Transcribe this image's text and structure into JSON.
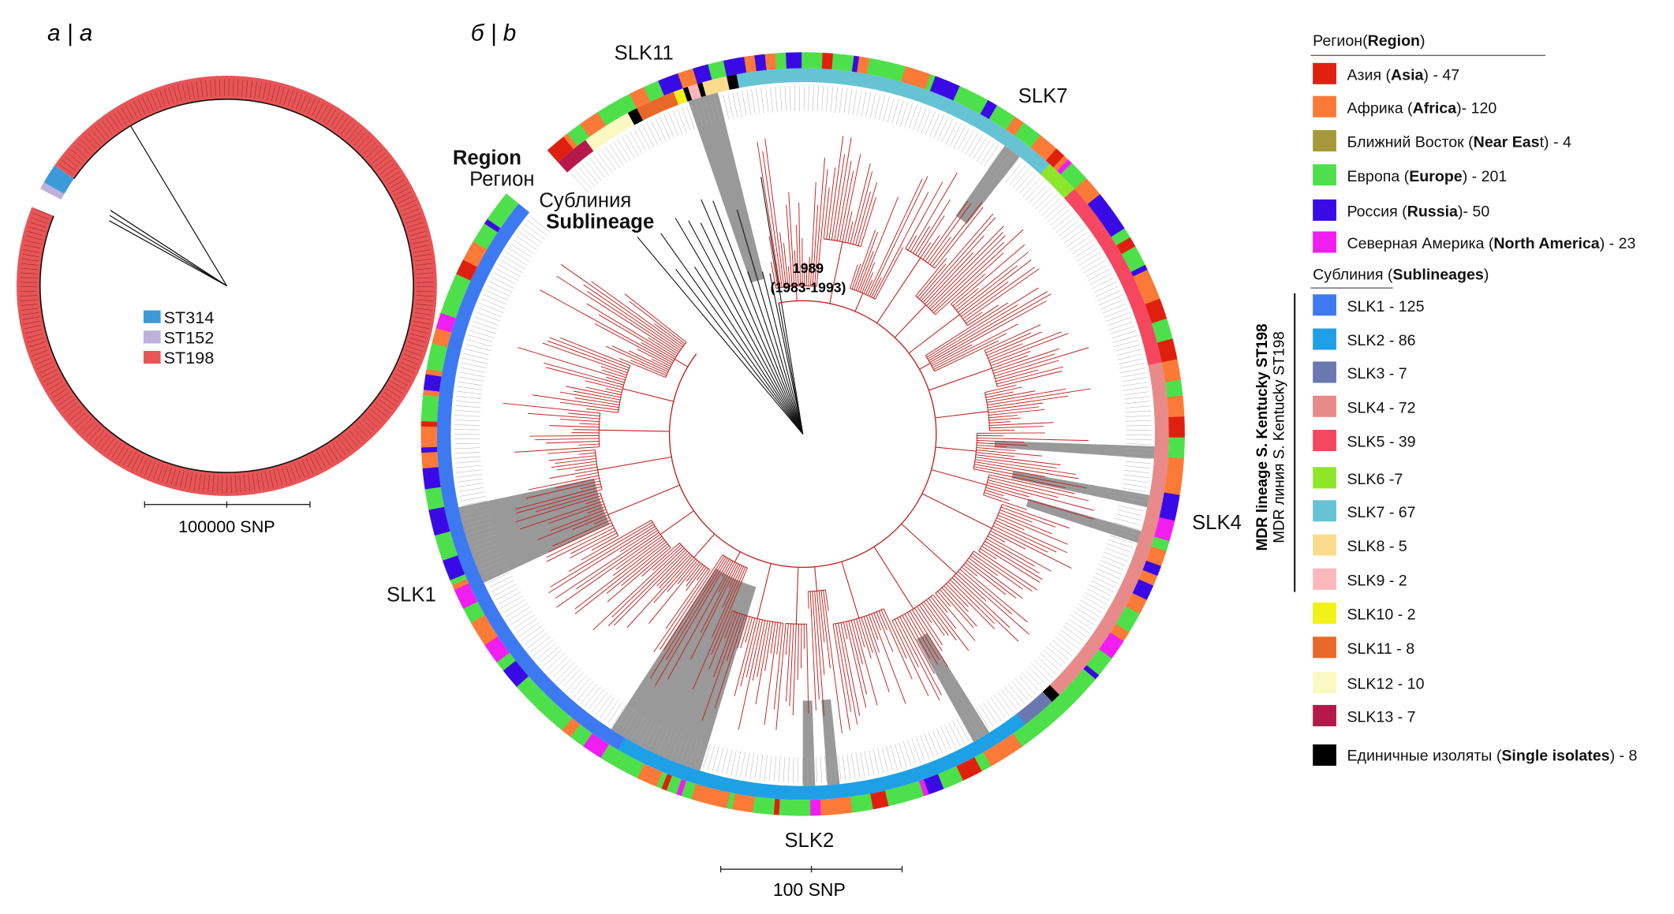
{
  "panel_a": {
    "label": "a | a",
    "legend": [
      {
        "name": "ST314",
        "color": "#3d9ad9"
      },
      {
        "name": "ST152",
        "color": "#bdb0dc"
      },
      {
        "name": "ST198",
        "color": "#e85557"
      }
    ],
    "scale_label": "100000 SNP"
  },
  "panel_b": {
    "label": "б | b",
    "ring_label_region_en": "Region",
    "ring_label_region_ru": "Регион",
    "ring_label_sub_ru": "Сублиния",
    "ring_label_sub_en": "Sublineage",
    "node_date": "1989",
    "node_interval": "(1983-1993)",
    "clade_labels": {
      "slk11": "SLK11",
      "slk7": "SLK7",
      "slk4": "SLK4",
      "slk2": "SLK2",
      "slk1": "SLK1"
    },
    "scale_label": "100 SNP"
  },
  "legend": {
    "region_header_ru": "Регион(",
    "region_header_en": "Region",
    "region_header_close": ")",
    "regions": [
      {
        "ru": "Азия (",
        "en": "Asia",
        "count": ") - 47",
        "color": "#e0200f"
      },
      {
        "ru": "Африка (",
        "en": "Africa",
        "count": ")- 120",
        "color": "#fb7a38"
      },
      {
        "ru": "Ближний Восток (",
        "en": "Near Eas",
        "count": "t) - 4",
        "color": "#a5993a"
      },
      {
        "ru": "Европа (",
        "en": "Europe",
        "count": ") - 201",
        "color": "#4ee04a"
      },
      {
        "ru": "Россия (",
        "en": "Russia",
        "count": ")- 50",
        "color": "#3a0ae6"
      },
      {
        "ru": "Северная Америка (",
        "en": "North America",
        "count": ") - 23",
        "color": "#f01ef0"
      }
    ],
    "sub_header_ru": "Сублиния (",
    "sub_header_en": "Sublineages",
    "sub_header_close": ")",
    "lineage_label_en": "MDR lineage S. Kentucky ST198",
    "lineage_label_ru": "MDR линия S. Kentucky ST198",
    "sublineages": [
      {
        "label": "SLK1 - 125",
        "color": "#3d7af2"
      },
      {
        "label": "SLK2 - 86",
        "color": "#1ea0e6"
      },
      {
        "label": "SLK3 - 7",
        "color": "#6a78b0"
      },
      {
        "label": "SLK4 - 72",
        "color": "#e88a8a"
      },
      {
        "label": "SLK5 - 39",
        "color": "#f5475f"
      },
      {
        "label": "SLK6 -7",
        "color": "#8de62a"
      },
      {
        "label": "SLK7 - 67",
        "color": "#66c3d3"
      },
      {
        "label": "SLK8 - 5",
        "color": "#fcdb8f"
      },
      {
        "label": "SLK9 - 2",
        "color": "#fbb8bc"
      },
      {
        "label": "SLK10 - 2",
        "color": "#f2f218"
      },
      {
        "label": "SLK11 - 8",
        "color": "#e8682a"
      },
      {
        "label": "SLK12 - 10",
        "color": "#fcf8c2"
      },
      {
        "label": "SLK13 - 7",
        "color": "#b5184a"
      }
    ],
    "single": {
      "ru": "Единичные изоляты (",
      "en": "Single isolates",
      "count": ") - 8",
      "color": "#000000"
    }
  }
}
